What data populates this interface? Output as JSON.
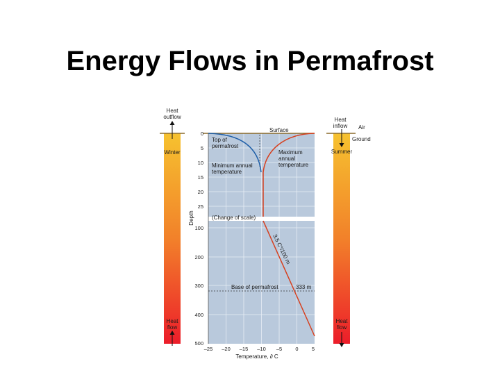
{
  "slide": {
    "title": "Energy Flows in Permafrost"
  },
  "left_bar": {
    "top_label": [
      "Heat",
      "outflow"
    ],
    "season": "Winter",
    "bottom_label": [
      "Heat",
      "flow"
    ]
  },
  "right_bar": {
    "top_label": [
      "Heat",
      "inflow"
    ],
    "season": "Summer",
    "bottom_label": [
      "Heat",
      "flow"
    ],
    "air_label": "Air",
    "ground_label": "Ground"
  },
  "colors": {
    "panel": "#b9c9dc",
    "blue_curve": "#1f5fa8",
    "red_curve": "#d6401f",
    "bar_top": "#f6c22f",
    "bar_bottom": "#ec1d2a"
  },
  "diagram": {
    "y_axis_label": "Depth",
    "x_axis_label": "Temperature, ∂ C",
    "upper_depth_ticks": [
      "0",
      "5",
      "10",
      "15",
      "20",
      "25"
    ],
    "lower_depth_ticks": [
      "100",
      "200",
      "300",
      "400",
      "500"
    ],
    "temperature_ticks": [
      "–25",
      "–20",
      "–15",
      "–10",
      "–5",
      "0",
      "5"
    ],
    "annotations": {
      "surface": "Surface",
      "top_of_permafrost": [
        "Top of",
        "permafrost"
      ],
      "minimum_temp": [
        "Minimum annual",
        "temperature"
      ],
      "maximum_temp": [
        "Maximum",
        "annual",
        "temperature"
      ],
      "change_of_scale": "(Change of scale)",
      "gradient": "3.5 C°/100 m",
      "base_of_permafrost": "Base of permafrost",
      "base_depth": "333 m"
    }
  }
}
